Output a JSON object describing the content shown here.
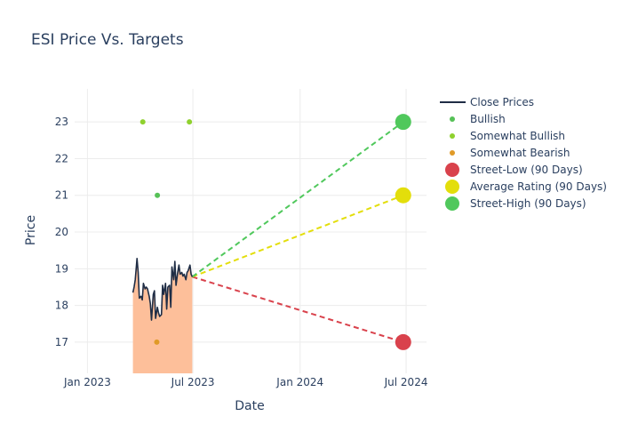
{
  "chart_data": {
    "type": "line",
    "title": "ESI Price Vs. Targets",
    "xlabel": "Date",
    "ylabel": "Price",
    "xlim": [
      "2022-12-10",
      "2024-08-05"
    ],
    "ylim": [
      16.15,
      23.9
    ],
    "grid": true,
    "legend_position": "right",
    "x_ticks": [
      {
        "date": "2023-01-01",
        "label": "Jan 2023"
      },
      {
        "date": "2023-07-01",
        "label": "Jul 2023"
      },
      {
        "date": "2024-01-01",
        "label": "Jan 2024"
      },
      {
        "date": "2024-07-01",
        "label": "Jul 2024"
      }
    ],
    "y_ticks": [
      17,
      18,
      19,
      20,
      21,
      22,
      23
    ],
    "colors": {
      "close": "#1f2d45",
      "fill": "#fdbf9a",
      "bullish": "#56c157",
      "somewhat_bullish": "#8fd12e",
      "somewhat_bearish": "#e09a28",
      "low": "#d9424c",
      "avg": "#e3de0b",
      "high": "#50c85c",
      "grid": "#ececec",
      "text": "#2a3f5f"
    },
    "close_prices": {
      "name": "Close Prices",
      "x": [
        "2023-03-20",
        "2023-03-22",
        "2023-03-24",
        "2023-03-27",
        "2023-03-29",
        "2023-03-31",
        "2023-04-03",
        "2023-04-05",
        "2023-04-07",
        "2023-04-10",
        "2023-04-12",
        "2023-04-14",
        "2023-04-17",
        "2023-04-19",
        "2023-04-21",
        "2023-04-24",
        "2023-04-26",
        "2023-04-28",
        "2023-05-01",
        "2023-05-03",
        "2023-05-05",
        "2023-05-08",
        "2023-05-10",
        "2023-05-12",
        "2023-05-15",
        "2023-05-17",
        "2023-05-19",
        "2023-05-22",
        "2023-05-24",
        "2023-05-26",
        "2023-05-29",
        "2023-05-31",
        "2023-06-02",
        "2023-06-05",
        "2023-06-07",
        "2023-06-09",
        "2023-06-12",
        "2023-06-14",
        "2023-06-16",
        "2023-06-19",
        "2023-06-21",
        "2023-06-23",
        "2023-06-26",
        "2023-06-28",
        "2023-06-30"
      ],
      "y": [
        18.35,
        18.5,
        18.7,
        19.28,
        18.9,
        18.2,
        18.25,
        18.15,
        18.6,
        18.45,
        18.5,
        18.45,
        18.25,
        18.05,
        17.6,
        18.3,
        18.4,
        17.65,
        17.95,
        17.8,
        17.7,
        17.75,
        18.55,
        18.3,
        18.6,
        17.9,
        18.5,
        18.55,
        17.95,
        19.05,
        18.7,
        19.2,
        18.55,
        18.9,
        19.1,
        18.85,
        18.9,
        18.8,
        18.85,
        18.7,
        18.9,
        18.95,
        19.1,
        18.85,
        18.78
      ]
    },
    "ratings": [
      {
        "name": "Bullish",
        "points": [
          {
            "x": "2023-05-01",
            "y": 21
          }
        ]
      },
      {
        "name": "Somewhat Bullish",
        "points": [
          {
            "x": "2023-04-06",
            "y": 23
          },
          {
            "x": "2023-06-25",
            "y": 23
          }
        ]
      },
      {
        "name": "Somewhat Bearish",
        "points": [
          {
            "x": "2023-04-30",
            "y": 17
          }
        ]
      }
    ],
    "targets": {
      "start": {
        "x": "2023-06-30",
        "y": 18.78
      },
      "end_date": "2024-06-26",
      "low": {
        "name": "Street-Low (90 Days)",
        "y": 17
      },
      "avg": {
        "name": "Average Rating (90 Days)",
        "y": 21
      },
      "high": {
        "name": "Street-High (90 Days)",
        "y": 23
      }
    },
    "legend": [
      "Close Prices",
      "Bullish",
      "Somewhat Bullish",
      "Somewhat Bearish",
      "Street-Low (90 Days)",
      "Average Rating (90 Days)",
      "Street-High (90 Days)"
    ]
  }
}
